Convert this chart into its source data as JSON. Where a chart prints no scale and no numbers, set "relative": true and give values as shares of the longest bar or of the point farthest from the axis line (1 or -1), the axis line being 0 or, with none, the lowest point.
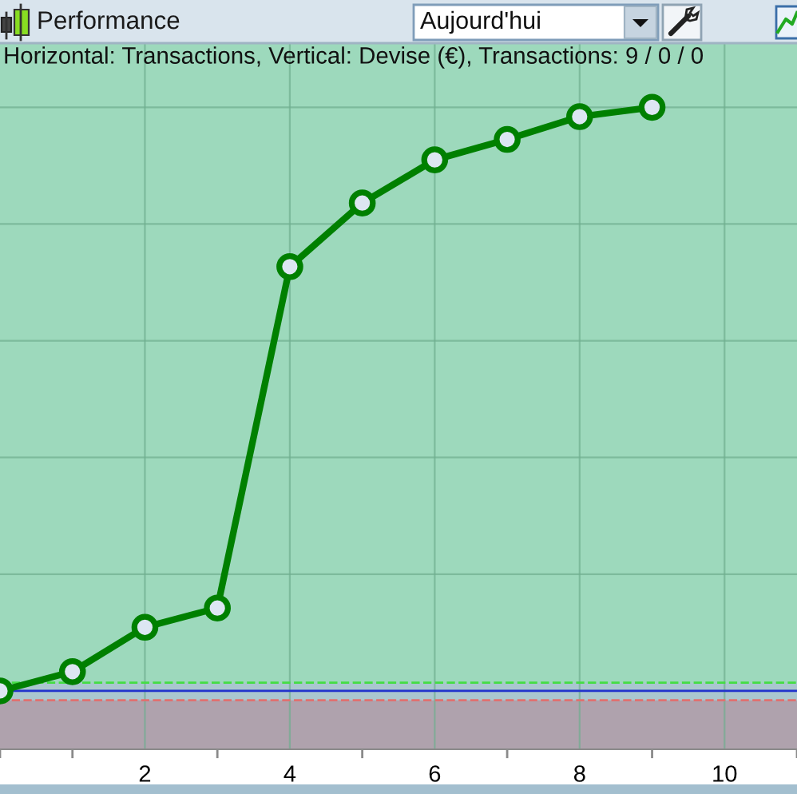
{
  "chart_data": {
    "type": "line",
    "title": "Performance",
    "subtitle": "Horizontal: Transactions, Vertical: Devise (€), Transactions: 9 / 0 / 0",
    "annotations": [
      "Aujourd'hui"
    ],
    "x": [
      0,
      1,
      2,
      3,
      4,
      5,
      6,
      7,
      8,
      9
    ],
    "series": [
      {
        "color": "#008000",
        "values": [
          0,
          0.033,
          0.109,
          0.142,
          0.727,
          0.836,
          0.91,
          0.945,
          0.984,
          1
        ]
      }
    ],
    "relative": true,
    "xlim": [
      0,
      11
    ],
    "xticks": [
      2,
      4,
      6,
      8,
      10
    ],
    "grid": true,
    "marker": "circle",
    "line_style": "solid",
    "bands": [
      {
        "axis": "y",
        "from": 0.014,
        "to": 1.11,
        "color": "#9dd9bc"
      },
      {
        "axis": "y",
        "from": -0.1,
        "to": -0.016,
        "color": "#afa2ad"
      }
    ],
    "ref_lines": [
      {
        "axis": "y",
        "value": 0.014,
        "color": "#44dd44",
        "line_style": "dashed"
      },
      {
        "axis": "y",
        "value": 0,
        "color": "#2233cc",
        "line_style": "solid"
      },
      {
        "axis": "y",
        "value": -0.016,
        "color": "#e07070",
        "line_style": "dashed"
      }
    ]
  }
}
